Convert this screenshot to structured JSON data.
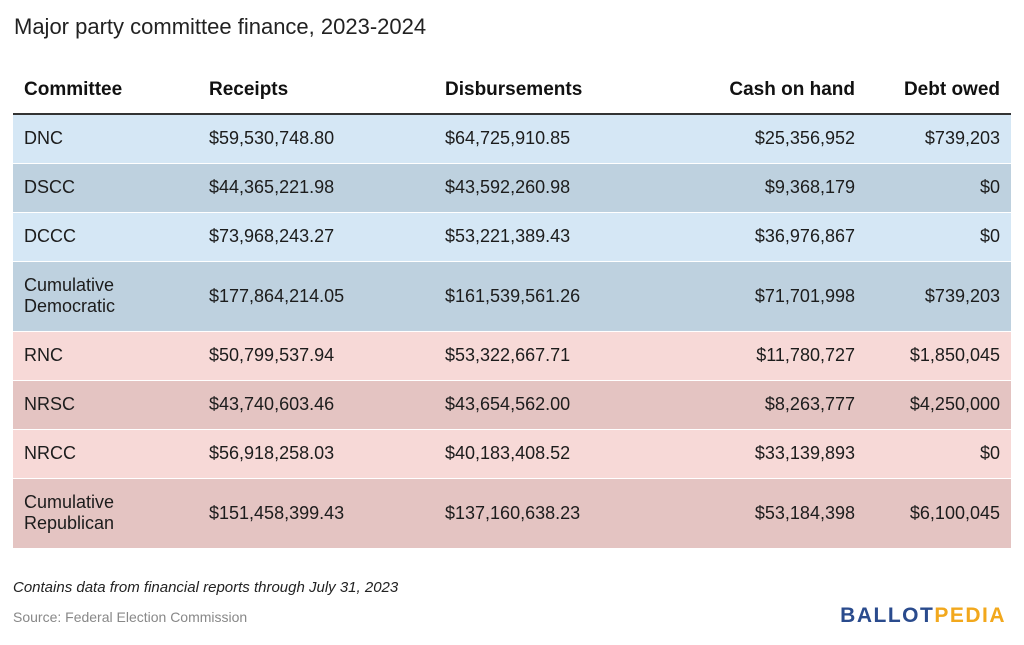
{
  "title": "Major party committee finance, 2023-2024",
  "table": {
    "headers": [
      "Committee",
      "Receipts",
      "Disbursements",
      "Cash on hand",
      "Debt owed"
    ],
    "rows": [
      {
        "cells": [
          "DNC",
          "$59,530,748.80",
          "$64,725,910.85",
          "$25,356,952",
          "$739,203"
        ],
        "bg": "#d5e7f5"
      },
      {
        "cells": [
          "DSCC",
          "$44,365,221.98",
          "$43,592,260.98",
          "$9,368,179",
          "$0"
        ],
        "bg": "#bed1df"
      },
      {
        "cells": [
          "DCCC",
          "$73,968,243.27",
          "$53,221,389.43",
          "$36,976,867",
          "$0"
        ],
        "bg": "#d5e7f5"
      },
      {
        "cells": [
          "Cumulative Democratic",
          "$177,864,214.05",
          "$161,539,561.26",
          "$71,701,998",
          "$739,203"
        ],
        "bg": "#bed1df"
      },
      {
        "cells": [
          "RNC",
          "$50,799,537.94",
          "$53,322,667.71",
          "$11,780,727",
          "$1,850,045"
        ],
        "bg": "#f7d9d7"
      },
      {
        "cells": [
          "NRSC",
          "$43,740,603.46",
          "$43,654,562.00",
          "$8,263,777",
          "$4,250,000"
        ],
        "bg": "#e4c4c2"
      },
      {
        "cells": [
          "NRCC",
          "$56,918,258.03",
          "$40,183,408.52",
          "$33,139,893",
          "$0"
        ],
        "bg": "#f7d9d7"
      },
      {
        "cells": [
          "Cumulative Republican",
          "$151,458,399.43",
          "$137,160,638.23",
          "$53,184,398",
          "$6,100,045"
        ],
        "bg": "#e4c4c2"
      }
    ]
  },
  "footer": {
    "note": "Contains data from financial reports through July 31, 2023",
    "source": "Source: Federal Election Commission",
    "logo_part1": "BALLOT",
    "logo_part2": "PEDIA"
  },
  "colors": {
    "dem_light": "#d5e7f5",
    "dem_dark": "#bed1df",
    "rep_light": "#f7d9d7",
    "rep_dark": "#e4c4c2",
    "logo_blue": "#2a4b8d",
    "logo_gold": "#f2a81d"
  }
}
